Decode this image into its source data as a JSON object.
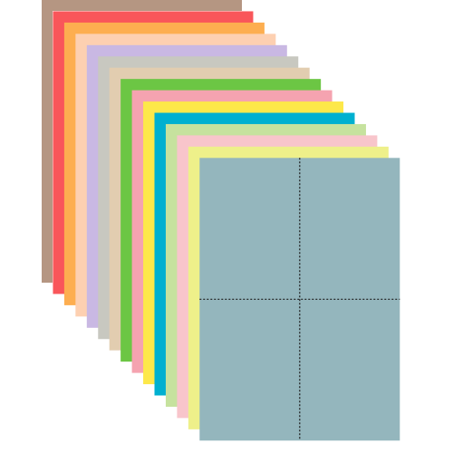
{
  "sheets": [
    {
      "color": "#b59682"
    },
    {
      "color": "#f9565a"
    },
    {
      "color": "#fdae50"
    },
    {
      "color": "#fdd0b1"
    },
    {
      "color": "#c9b8e3"
    },
    {
      "color": "#c8c8c0"
    },
    {
      "color": "#e2cdb0"
    },
    {
      "color": "#6cc644"
    },
    {
      "color": "#f5a3b0"
    },
    {
      "color": "#fde84a"
    },
    {
      "color": "#00b0d0"
    },
    {
      "color": "#c6e29e"
    },
    {
      "color": "#f8c5cb"
    },
    {
      "color": "#eef08a"
    },
    {
      "color": "#94b6bd"
    }
  ]
}
